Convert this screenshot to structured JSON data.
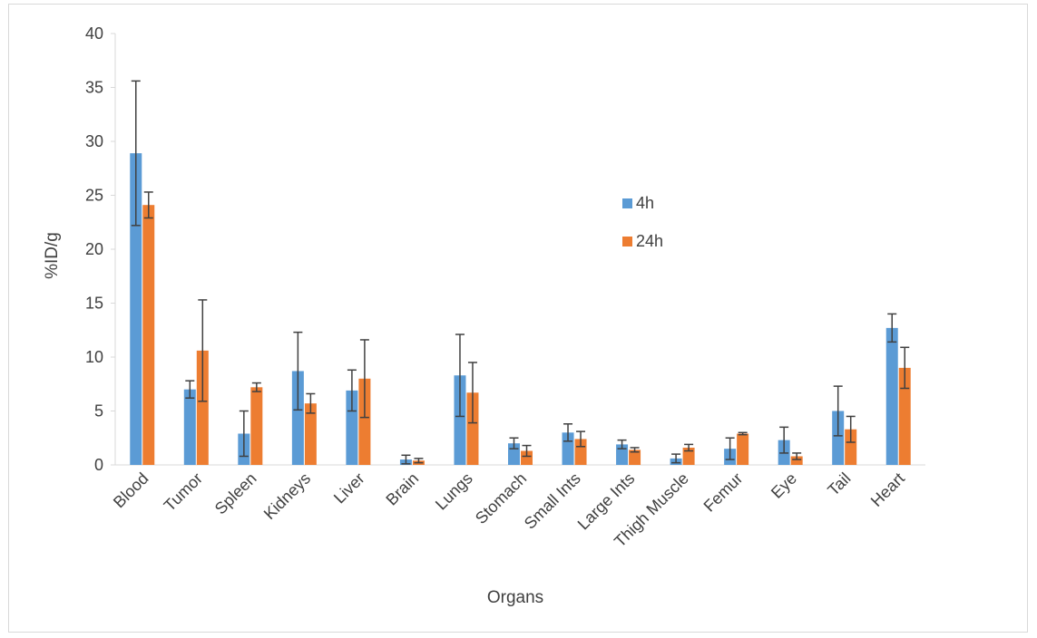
{
  "chart_data": {
    "type": "bar",
    "title": "",
    "xlabel": "Organs",
    "ylabel": "%ID/g",
    "ylim": [
      0,
      40
    ],
    "yticks": [
      "0",
      "5",
      "10",
      "15",
      "20",
      "25",
      "30",
      "35",
      "40"
    ],
    "grid": false,
    "legend_position": "right",
    "categories": [
      "Blood",
      "Tumor",
      "Spleen",
      "Kidneys",
      "Liver",
      "Brain",
      "Lungs",
      "Stomach",
      "Small Ints",
      "Large Ints",
      "Thigh Muscle",
      "Femur",
      "Eye",
      "Tail",
      "Heart"
    ],
    "series": [
      {
        "name": "4h",
        "color": "#5b9bd5",
        "values": [
          28.9,
          7.0,
          2.9,
          8.7,
          6.9,
          0.5,
          8.3,
          2.0,
          3.0,
          1.9,
          0.6,
          1.5,
          2.3,
          5.0,
          12.7
        ],
        "errors": [
          6.7,
          0.8,
          2.1,
          3.6,
          1.9,
          0.4,
          3.8,
          0.5,
          0.8,
          0.4,
          0.4,
          1.0,
          1.2,
          2.3,
          1.3
        ]
      },
      {
        "name": "24h",
        "color": "#ed7d31",
        "values": [
          24.1,
          10.6,
          7.2,
          5.7,
          8.0,
          0.4,
          6.7,
          1.3,
          2.4,
          1.4,
          1.6,
          2.9,
          0.8,
          3.3,
          9.0
        ],
        "errors": [
          1.2,
          4.7,
          0.4,
          0.9,
          3.6,
          0.2,
          2.8,
          0.5,
          0.7,
          0.2,
          0.3,
          0.1,
          0.3,
          1.2,
          1.9
        ]
      }
    ],
    "error_bar_color": "#404040"
  }
}
